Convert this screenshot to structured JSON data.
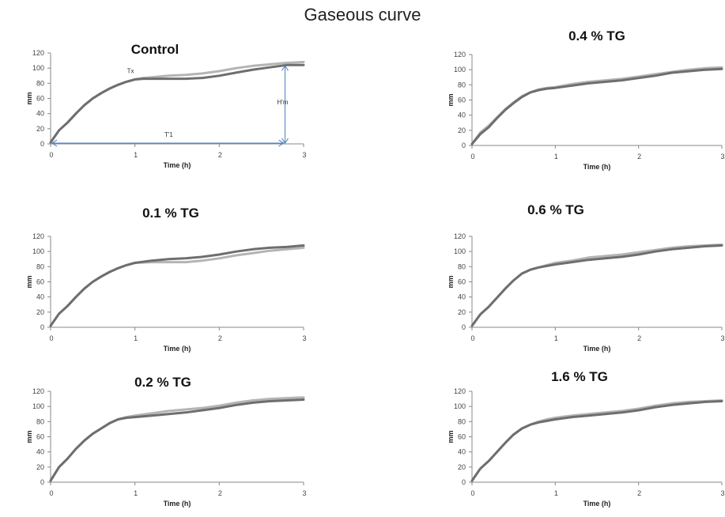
{
  "figure": {
    "title": "Gaseous curve"
  },
  "chart_data": [
    {
      "type": "line",
      "title": "Control",
      "xlabel": "Time (h)",
      "ylabel": "mm",
      "xlim": [
        0,
        3
      ],
      "ylim": [
        0,
        120
      ],
      "xticks": [
        0,
        1,
        2,
        3
      ],
      "yticks": [
        0,
        20,
        40,
        60,
        80,
        100,
        120
      ],
      "colors": [
        "#6e6e6e",
        "#b4b4b4"
      ],
      "series": [
        {
          "x": [
            0,
            0.1,
            0.2,
            0.3,
            0.4,
            0.5,
            0.6,
            0.7,
            0.8,
            0.9,
            1.0,
            1.1,
            1.2,
            1.4,
            1.6,
            1.8,
            2.0,
            2.2,
            2.4,
            2.6,
            2.8,
            3.0
          ],
          "values": [
            2,
            18,
            28,
            40,
            51,
            60,
            67,
            73,
            78,
            82,
            85,
            86,
            86,
            86,
            86,
            87,
            90,
            94,
            98,
            101,
            104,
            104
          ]
        },
        {
          "x": [
            0,
            0.1,
            0.2,
            0.3,
            0.4,
            0.5,
            0.6,
            0.7,
            0.8,
            0.9,
            1.0,
            1.1,
            1.2,
            1.4,
            1.6,
            1.8,
            2.0,
            2.2,
            2.4,
            2.6,
            2.8,
            3.0
          ],
          "values": [
            2,
            18,
            28,
            40,
            51,
            60,
            67,
            73,
            78,
            82,
            85,
            87,
            88,
            90,
            91,
            93,
            96,
            100,
            103,
            105,
            107,
            108
          ]
        }
      ],
      "annotations": {
        "tx": "Tx",
        "hm": "H'm",
        "t1": "T'1"
      }
    },
    {
      "type": "line",
      "title": "0.4 % TG",
      "xlabel": "Time (h)",
      "ylabel": "mm",
      "xlim": [
        0,
        3
      ],
      "ylim": [
        0,
        120
      ],
      "xticks": [
        0,
        1,
        2,
        3
      ],
      "yticks": [
        0,
        20,
        40,
        60,
        80,
        100,
        120
      ],
      "colors": [
        "#6e6e6e",
        "#b4b4b4"
      ],
      "series": [
        {
          "x": [
            0,
            0.1,
            0.2,
            0.3,
            0.4,
            0.5,
            0.6,
            0.7,
            0.8,
            0.9,
            1.0,
            1.2,
            1.4,
            1.6,
            1.8,
            2.0,
            2.2,
            2.4,
            2.6,
            2.8,
            3.0
          ],
          "values": [
            2,
            15,
            24,
            36,
            47,
            56,
            64,
            70,
            73,
            75,
            76,
            79,
            82,
            84,
            86,
            89,
            92,
            96,
            98,
            100,
            101
          ]
        },
        {
          "x": [
            0,
            0.1,
            0.2,
            0.3,
            0.4,
            0.5,
            0.6,
            0.7,
            0.8,
            0.9,
            1.0,
            1.2,
            1.4,
            1.6,
            1.8,
            2.0,
            2.2,
            2.4,
            2.6,
            2.8,
            3.0
          ],
          "values": [
            2,
            17,
            26,
            37,
            48,
            57,
            65,
            70,
            74,
            76,
            77,
            81,
            84,
            86,
            88,
            91,
            94,
            97,
            100,
            102,
            103
          ]
        }
      ]
    },
    {
      "type": "line",
      "title": "0.1 % TG",
      "xlabel": "Time (h)",
      "ylabel": "mm",
      "xlim": [
        0,
        3
      ],
      "ylim": [
        0,
        120
      ],
      "xticks": [
        0,
        1,
        2,
        3
      ],
      "yticks": [
        0,
        20,
        40,
        60,
        80,
        100,
        120
      ],
      "colors": [
        "#6e6e6e",
        "#b4b4b4"
      ],
      "series": [
        {
          "x": [
            0,
            0.1,
            0.2,
            0.3,
            0.4,
            0.5,
            0.6,
            0.7,
            0.8,
            0.9,
            1.0,
            1.2,
            1.4,
            1.6,
            1.8,
            2.0,
            2.2,
            2.4,
            2.6,
            2.8,
            3.0
          ],
          "values": [
            2,
            18,
            28,
            40,
            51,
            60,
            67,
            73,
            78,
            82,
            85,
            88,
            90,
            91,
            93,
            96,
            100,
            103,
            105,
            106,
            108
          ]
        },
        {
          "x": [
            0,
            0.1,
            0.2,
            0.3,
            0.4,
            0.5,
            0.6,
            0.7,
            0.8,
            0.9,
            1.0,
            1.2,
            1.4,
            1.6,
            1.8,
            2.0,
            2.2,
            2.4,
            2.6,
            2.8,
            3.0
          ],
          "values": [
            2,
            18,
            28,
            40,
            51,
            60,
            67,
            73,
            78,
            82,
            85,
            86,
            86,
            86,
            88,
            91,
            95,
            98,
            101,
            103,
            105
          ]
        }
      ]
    },
    {
      "type": "line",
      "title": "0.6 % TG",
      "xlabel": "Time (h)",
      "ylabel": "mm",
      "xlim": [
        0,
        3
      ],
      "ylim": [
        0,
        120
      ],
      "xticks": [
        0,
        1,
        2,
        3
      ],
      "yticks": [
        0,
        20,
        40,
        60,
        80,
        100,
        120
      ],
      "colors": [
        "#6e6e6e",
        "#b4b4b4"
      ],
      "series": [
        {
          "x": [
            0,
            0.1,
            0.2,
            0.3,
            0.4,
            0.5,
            0.6,
            0.7,
            0.8,
            0.9,
            1.0,
            1.2,
            1.4,
            1.6,
            1.8,
            2.0,
            2.2,
            2.4,
            2.6,
            2.8,
            3.0
          ],
          "values": [
            2,
            17,
            27,
            39,
            51,
            62,
            71,
            76,
            79,
            81,
            83,
            86,
            89,
            91,
            93,
            96,
            100,
            103,
            105,
            107,
            108
          ]
        },
        {
          "x": [
            0,
            0.1,
            0.2,
            0.3,
            0.4,
            0.5,
            0.6,
            0.7,
            0.8,
            0.9,
            1.0,
            1.2,
            1.4,
            1.6,
            1.8,
            2.0,
            2.2,
            2.4,
            2.6,
            2.8,
            3.0
          ],
          "values": [
            2,
            17,
            27,
            39,
            51,
            62,
            71,
            76,
            79,
            82,
            85,
            88,
            92,
            94,
            96,
            99,
            102,
            105,
            107,
            108,
            109
          ]
        }
      ]
    },
    {
      "type": "line",
      "title": "0.2 % TG",
      "xlabel": "Time (h)",
      "ylabel": "mm",
      "xlim": [
        0,
        3
      ],
      "ylim": [
        0,
        120
      ],
      "xticks": [
        0,
        1,
        2,
        3
      ],
      "yticks": [
        0,
        20,
        40,
        60,
        80,
        100,
        120
      ],
      "colors": [
        "#6e6e6e",
        "#b4b4b4"
      ],
      "series": [
        {
          "x": [
            0,
            0.1,
            0.2,
            0.3,
            0.4,
            0.5,
            0.6,
            0.7,
            0.8,
            0.9,
            1.0,
            1.2,
            1.4,
            1.6,
            1.8,
            2.0,
            2.2,
            2.4,
            2.6,
            2.8,
            3.0
          ],
          "values": [
            2,
            20,
            31,
            44,
            55,
            64,
            71,
            78,
            83,
            85,
            86,
            88,
            90,
            92,
            95,
            98,
            102,
            105,
            107,
            108,
            109
          ]
        },
        {
          "x": [
            0,
            0.1,
            0.2,
            0.3,
            0.4,
            0.5,
            0.6,
            0.7,
            0.8,
            0.9,
            1.0,
            1.2,
            1.4,
            1.6,
            1.8,
            2.0,
            2.2,
            2.4,
            2.6,
            2.8,
            3.0
          ],
          "values": [
            2,
            20,
            31,
            44,
            55,
            64,
            71,
            78,
            83,
            86,
            88,
            91,
            94,
            96,
            98,
            101,
            105,
            108,
            110,
            111,
            112
          ]
        }
      ]
    },
    {
      "type": "line",
      "title": "1.6 % TG",
      "xlabel": "Time (h)",
      "ylabel": "mm",
      "xlim": [
        0,
        3
      ],
      "ylim": [
        0,
        120
      ],
      "xticks": [
        0,
        1,
        2,
        3
      ],
      "yticks": [
        0,
        20,
        40,
        60,
        80,
        100,
        120
      ],
      "colors": [
        "#6e6e6e",
        "#b4b4b4"
      ],
      "series": [
        {
          "x": [
            0,
            0.1,
            0.2,
            0.3,
            0.4,
            0.5,
            0.6,
            0.7,
            0.8,
            0.9,
            1.0,
            1.2,
            1.4,
            1.6,
            1.8,
            2.0,
            2.2,
            2.4,
            2.6,
            2.8,
            3.0
          ],
          "values": [
            2,
            18,
            28,
            40,
            52,
            63,
            71,
            76,
            79,
            81,
            83,
            86,
            88,
            90,
            92,
            95,
            99,
            102,
            104,
            106,
            107
          ]
        },
        {
          "x": [
            0,
            0.1,
            0.2,
            0.3,
            0.4,
            0.5,
            0.6,
            0.7,
            0.8,
            0.9,
            1.0,
            1.2,
            1.4,
            1.6,
            1.8,
            2.0,
            2.2,
            2.4,
            2.6,
            2.8,
            3.0
          ],
          "values": [
            2,
            18,
            28,
            40,
            52,
            63,
            71,
            76,
            80,
            83,
            85,
            88,
            90,
            92,
            94,
            97,
            101,
            104,
            106,
            107,
            108
          ]
        }
      ]
    }
  ]
}
